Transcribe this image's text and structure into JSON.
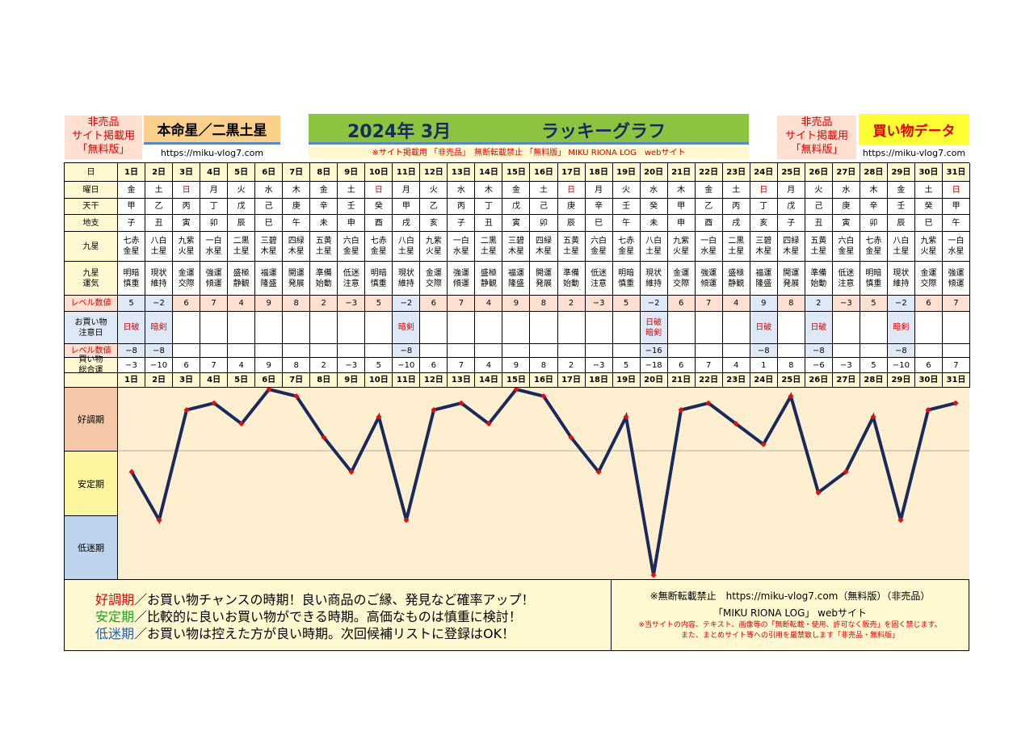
{
  "header": {
    "left_note": [
      "非売品",
      "サイト掲載用",
      "「無料版」"
    ],
    "honmei": "本命星／二黒土星",
    "url1": "https://miku-vlog7.com",
    "title_month": "2024年 3月",
    "title_graph": "ラッキーグラフ",
    "notice": "※サイト掲載用 「非売品」　無断転載禁止 「無料版」 MIKU RIONA LOG　webサイト",
    "right_note": [
      "非売品",
      "サイト掲載用",
      "「無料版」"
    ],
    "shopping": "買い物データ",
    "url2": "https://miku-vlog7.com"
  },
  "row_labels": {
    "day": "日",
    "weekday": "曜日",
    "tenkan": "天干",
    "chishi": "地支",
    "kyusei": "九星",
    "unki": "九星\n運気",
    "level": "レベル数値",
    "caution": "お買い物\n注意日",
    "level2": "レベル数値",
    "total": "買い物\n総合運"
  },
  "days": [
    "1日",
    "2日",
    "3日",
    "4日",
    "5日",
    "6日",
    "7日",
    "8日",
    "9日",
    "10日",
    "11日",
    "12日",
    "13日",
    "14日",
    "15日",
    "16日",
    "17日",
    "18日",
    "19日",
    "20日",
    "21日",
    "22日",
    "23日",
    "24日",
    "25日",
    "26日",
    "27日",
    "28日",
    "29日",
    "30日",
    "31日"
  ],
  "weekdays": [
    "金",
    "土",
    "日",
    "月",
    "火",
    "水",
    "木",
    "金",
    "土",
    "日",
    "月",
    "火",
    "水",
    "木",
    "金",
    "土",
    "日",
    "月",
    "火",
    "水",
    "木",
    "金",
    "土",
    "日",
    "月",
    "火",
    "水",
    "木",
    "金",
    "土",
    "日"
  ],
  "tenkan": [
    "甲",
    "乙",
    "丙",
    "丁",
    "戊",
    "己",
    "庚",
    "辛",
    "壬",
    "癸",
    "甲",
    "乙",
    "丙",
    "丁",
    "戊",
    "己",
    "庚",
    "辛",
    "壬",
    "癸",
    "甲",
    "乙",
    "丙",
    "丁",
    "戊",
    "己",
    "庚",
    "辛",
    "壬",
    "癸",
    "甲"
  ],
  "chishi": [
    "子",
    "丑",
    "寅",
    "卯",
    "辰",
    "巳",
    "午",
    "未",
    "申",
    "酉",
    "戌",
    "亥",
    "子",
    "丑",
    "寅",
    "卯",
    "辰",
    "巳",
    "午",
    "未",
    "申",
    "酉",
    "戌",
    "亥",
    "子",
    "丑",
    "寅",
    "卯",
    "辰",
    "巳",
    "午"
  ],
  "kyusei": [
    "七赤\n金星",
    "八白\n土星",
    "九紫\n火星",
    "一白\n水星",
    "二黒\n土星",
    "三碧\n木星",
    "四緑\n木星",
    "五黄\n土星",
    "六白\n金星",
    "七赤\n金星",
    "八白\n土星",
    "九紫\n火星",
    "一白\n水星",
    "二黒\n土星",
    "三碧\n木星",
    "四緑\n木星",
    "五黄\n土星",
    "六白\n金星",
    "七赤\n金星",
    "八白\n土星",
    "九紫\n火星",
    "一白\n水星",
    "二黒\n土星",
    "三碧\n木星",
    "四緑\n木星",
    "五黄\n土星",
    "六白\n金星",
    "七赤\n金星",
    "八白\n土星",
    "九紫\n火星",
    "一白\n水星"
  ],
  "unki": [
    "明暗\n慎重",
    "現状\n維持",
    "金運\n交際",
    "強運\n傾運",
    "盛極\n静観",
    "福運\n隆盛",
    "開運\n発展",
    "準備\n始動",
    "低迷\n注意",
    "明暗\n慎重",
    "現状\n維持",
    "金運\n交際",
    "強運\n傾運",
    "盛極\n静観",
    "福運\n隆盛",
    "開運\n発展",
    "準備\n始動",
    "低迷\n注意",
    "明暗\n慎重",
    "現状\n維持",
    "金運\n交際",
    "強運\n傾運",
    "盛極\n静観",
    "福運\n隆盛",
    "開運\n発展",
    "準備\n始動",
    "低迷\n注意",
    "明暗\n慎重",
    "現状\n維持",
    "金運\n交際",
    "強運\n傾運"
  ],
  "level": [
    "5",
    "−2",
    "6",
    "7",
    "4",
    "9",
    "8",
    "2",
    "−3",
    "5",
    "−2",
    "6",
    "7",
    "4",
    "9",
    "8",
    "2",
    "−3",
    "5",
    "−2",
    "6",
    "7",
    "4",
    "9",
    "8",
    "2",
    "−3",
    "5",
    "−2",
    "6",
    "7"
  ],
  "caution": [
    "日破",
    "暗剣",
    "",
    "",
    "",
    "",
    "",
    "",
    "",
    "",
    "暗剣",
    "",
    "",
    "",
    "",
    "",
    "",
    "",
    "",
    "日破\n暗剣",
    "",
    "",
    "",
    "日破",
    "",
    "日破",
    "",
    "",
    "暗剣",
    "",
    ""
  ],
  "level2": [
    "−8",
    "−8",
    "",
    "",
    "",
    "",
    "",
    "",
    "",
    "",
    "−8",
    "",
    "",
    "",
    "",
    "",
    "",
    "",
    "",
    "−16",
    "",
    "",
    "",
    "−8",
    "",
    "−8",
    "",
    "",
    "−8",
    "",
    ""
  ],
  "total": [
    "−3",
    "−10",
    "6",
    "7",
    "4",
    "9",
    "8",
    "2",
    "−3",
    "5",
    "−10",
    "6",
    "7",
    "4",
    "9",
    "8",
    "2",
    "−3",
    "5",
    "−18",
    "6",
    "7",
    "4",
    "1",
    "8",
    "−6",
    "−3",
    "5",
    "−10",
    "6",
    "7"
  ],
  "zones": {
    "good": "好調期",
    "stable": "安定期",
    "low": "低迷期"
  },
  "legend": {
    "good_word": "好調期",
    "good_text": "／お買い物チャンスの時期！良い商品のご縁、発見など確率アップ！",
    "stable_word": "安定期",
    "stable_text": "／比較的に良いお買い物ができる時期。高価なものは慎重に検討！",
    "low_word": "低迷期",
    "low_text": "／お買い物は控えた方が良い時期。次回候補リストに登録はOK！"
  },
  "footer": {
    "line1": "※無断転載禁止　https://miku-vlog7.com（無料版）（非売品）",
    "line2": "「MIKU RIONA LOG」 webサイト",
    "line3": "※当サイトの内容、テキスト、画像等の「無断転載・使用、許可なく販売」を固く禁じます。",
    "line4": "また、まとめサイト等への引用を厳禁致します「非売品・無料版」"
  },
  "colors": {
    "line": "#1a2a5c",
    "marker": "#e01010",
    "good_bg": "#f5c9a8",
    "stable_bg": "#fbf5a0",
    "low_bg": "#bed3ec",
    "chart_bg": "#fdefcf",
    "title_bg": "#8cc43f",
    "honmei_bg": "#fbd08a",
    "shopping_bg": "#ffff33",
    "level_bg": "#fde0d2",
    "weekday_bg": "#dfe8f5"
  },
  "chart_data": {
    "type": "line",
    "title": "ラッキーグラフ",
    "categories": [
      "1日",
      "2日",
      "3日",
      "4日",
      "5日",
      "6日",
      "7日",
      "8日",
      "9日",
      "10日",
      "11日",
      "12日",
      "13日",
      "14日",
      "15日",
      "16日",
      "17日",
      "18日",
      "19日",
      "20日",
      "21日",
      "22日",
      "23日",
      "24日",
      "25日",
      "26日",
      "27日",
      "28日",
      "29日",
      "30日",
      "31日"
    ],
    "series": [
      {
        "values": [
          -3,
          -10,
          6,
          7,
          4,
          9,
          8,
          2,
          -3,
          5,
          -10,
          6,
          7,
          4,
          9,
          8,
          2,
          -3,
          5,
          -18,
          6,
          7,
          4,
          1,
          8,
          -6,
          -3,
          5,
          -10,
          6,
          7
        ]
      }
    ],
    "ylim": [
      -18,
      9
    ],
    "zones": [
      "好調期",
      "安定期",
      "低迷期"
    ]
  }
}
